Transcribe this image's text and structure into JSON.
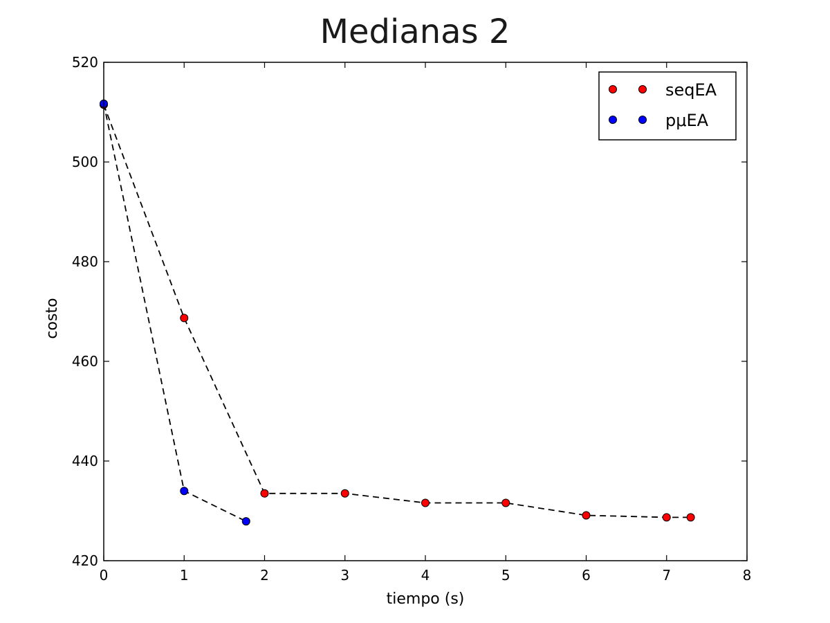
{
  "chart_data": {
    "type": "line",
    "title": "Medianas 2",
    "xlabel": "tiempo (s)",
    "ylabel": "costo",
    "xlim": [
      0,
      8
    ],
    "ylim": [
      420,
      520
    ],
    "xticks": [
      0,
      1,
      2,
      3,
      4,
      5,
      6,
      7,
      8
    ],
    "yticks": [
      420,
      440,
      460,
      480,
      500,
      520
    ],
    "grid": false,
    "legend": "top-right",
    "series": [
      {
        "name": "seqEA",
        "color": "#ff0000",
        "x": [
          0,
          1,
          2,
          3,
          4,
          5,
          6,
          7,
          7.3
        ],
        "y": [
          511.5,
          468.7,
          433.5,
          433.5,
          431.6,
          431.6,
          429.1,
          428.7,
          428.7
        ]
      },
      {
        "name": "pμEA",
        "color": "#0000ff",
        "x": [
          0,
          1,
          1.77
        ],
        "y": [
          511.7,
          434.0,
          427.9
        ]
      }
    ]
  }
}
